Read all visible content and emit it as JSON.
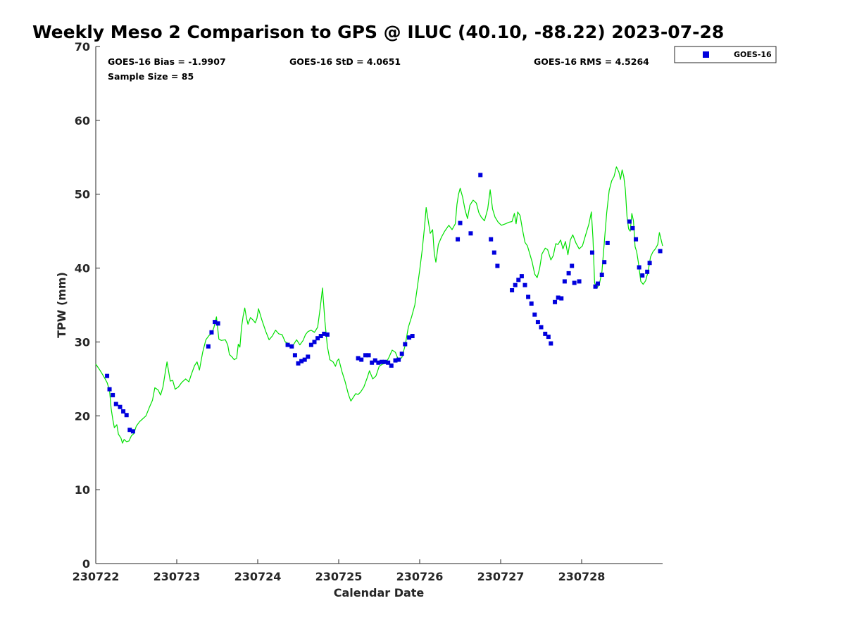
{
  "chart_data": {
    "type": "scatter",
    "title": "Weekly Meso 2 Comparison to GPS @ ILUC (40.10, -88.22) 2023-07-28",
    "xlabel": "Calendar Date",
    "ylabel": "TPW (mm)",
    "ylim": [
      0,
      70
    ],
    "yticks": [
      0,
      10,
      20,
      30,
      40,
      50,
      60,
      70
    ],
    "xlim": [
      0,
      7
    ],
    "xticks": [
      {
        "x": 0,
        "label": "230722"
      },
      {
        "x": 1,
        "label": "230723"
      },
      {
        "x": 2,
        "label": "230724"
      },
      {
        "x": 3,
        "label": "230725"
      },
      {
        "x": 4,
        "label": "230726"
      },
      {
        "x": 5,
        "label": "230727"
      },
      {
        "x": 6,
        "label": "230728"
      }
    ],
    "grid": false,
    "legend_position": "outside-top-right",
    "stats": {
      "bias": "GOES-16 Bias = -1.9907",
      "std": "GOES-16 StD = 4.0651",
      "rms": "GOES-16 RMS = 4.5264",
      "sample": "Sample Size = 85"
    },
    "legend": {
      "label": "GOES-16"
    },
    "series": [
      {
        "name": "GOES-16",
        "kind": "scatter",
        "color": "#0000dd",
        "points": [
          [
            0.14,
            25.4
          ],
          [
            0.17,
            23.6
          ],
          [
            0.21,
            22.8
          ],
          [
            0.25,
            21.6
          ],
          [
            0.3,
            21.2
          ],
          [
            0.34,
            20.6
          ],
          [
            0.38,
            20.1
          ],
          [
            0.42,
            18.1
          ],
          [
            0.46,
            17.9
          ],
          [
            1.39,
            29.4
          ],
          [
            1.43,
            31.3
          ],
          [
            1.47,
            32.7
          ],
          [
            1.51,
            32.5
          ],
          [
            2.37,
            29.6
          ],
          [
            2.42,
            29.4
          ],
          [
            2.46,
            28.2
          ],
          [
            2.5,
            27.1
          ],
          [
            2.54,
            27.4
          ],
          [
            2.58,
            27.6
          ],
          [
            2.62,
            28.0
          ],
          [
            2.66,
            29.6
          ],
          [
            2.7,
            30.0
          ],
          [
            2.74,
            30.5
          ],
          [
            2.78,
            30.8
          ],
          [
            2.82,
            31.1
          ],
          [
            2.86,
            31.0
          ],
          [
            3.24,
            27.8
          ],
          [
            3.28,
            27.6
          ],
          [
            3.33,
            28.2
          ],
          [
            3.37,
            28.2
          ],
          [
            3.41,
            27.2
          ],
          [
            3.45,
            27.5
          ],
          [
            3.49,
            27.2
          ],
          [
            3.53,
            27.3
          ],
          [
            3.57,
            27.3
          ],
          [
            3.61,
            27.2
          ],
          [
            3.65,
            26.8
          ],
          [
            3.7,
            27.5
          ],
          [
            3.74,
            27.6
          ],
          [
            3.78,
            28.4
          ],
          [
            3.82,
            29.7
          ],
          [
            3.87,
            30.6
          ],
          [
            3.91,
            30.8
          ],
          [
            4.47,
            43.9
          ],
          [
            4.5,
            46.1
          ],
          [
            4.63,
            44.7
          ],
          [
            4.75,
            52.6
          ],
          [
            4.88,
            43.9
          ],
          [
            4.92,
            42.1
          ],
          [
            4.96,
            40.3
          ],
          [
            5.14,
            37.0
          ],
          [
            5.18,
            37.7
          ],
          [
            5.22,
            38.4
          ],
          [
            5.26,
            38.9
          ],
          [
            5.3,
            37.7
          ],
          [
            5.34,
            36.1
          ],
          [
            5.38,
            35.2
          ],
          [
            5.42,
            33.7
          ],
          [
            5.46,
            32.7
          ],
          [
            5.5,
            32.0
          ],
          [
            5.55,
            31.1
          ],
          [
            5.59,
            30.7
          ],
          [
            5.62,
            29.8
          ],
          [
            5.67,
            35.4
          ],
          [
            5.71,
            36.0
          ],
          [
            5.75,
            35.9
          ],
          [
            5.79,
            38.2
          ],
          [
            5.84,
            39.3
          ],
          [
            5.88,
            40.3
          ],
          [
            5.91,
            38.0
          ],
          [
            5.97,
            38.2
          ],
          [
            6.13,
            42.1
          ],
          [
            6.17,
            37.5
          ],
          [
            6.2,
            37.9
          ],
          [
            6.25,
            39.1
          ],
          [
            6.28,
            40.8
          ],
          [
            6.32,
            43.4
          ],
          [
            6.59,
            46.3
          ],
          [
            6.63,
            45.4
          ],
          [
            6.67,
            43.9
          ],
          [
            6.71,
            40.1
          ],
          [
            6.75,
            39.0
          ],
          [
            6.81,
            39.5
          ],
          [
            6.84,
            40.7
          ],
          [
            6.97,
            42.3
          ]
        ]
      },
      {
        "name": "",
        "kind": "line",
        "color": "#00e000",
        "points": [
          [
            0.0,
            27.0
          ],
          [
            0.05,
            26.2
          ],
          [
            0.1,
            25.3
          ],
          [
            0.14,
            24.5
          ],
          [
            0.17,
            23.4
          ],
          [
            0.19,
            21.0
          ],
          [
            0.21,
            19.5
          ],
          [
            0.23,
            18.4
          ],
          [
            0.26,
            18.8
          ],
          [
            0.28,
            17.5
          ],
          [
            0.31,
            17.0
          ],
          [
            0.33,
            16.3
          ],
          [
            0.35,
            16.8
          ],
          [
            0.38,
            16.5
          ],
          [
            0.41,
            16.6
          ],
          [
            0.44,
            17.3
          ],
          [
            0.47,
            17.6
          ],
          [
            0.5,
            18.6
          ],
          [
            0.54,
            19.2
          ],
          [
            0.58,
            19.6
          ],
          [
            0.62,
            20.0
          ],
          [
            0.66,
            21.1
          ],
          [
            0.7,
            22.1
          ],
          [
            0.73,
            23.8
          ],
          [
            0.77,
            23.5
          ],
          [
            0.8,
            22.8
          ],
          [
            0.83,
            23.9
          ],
          [
            0.86,
            26.0
          ],
          [
            0.88,
            27.3
          ],
          [
            0.9,
            26.0
          ],
          [
            0.92,
            24.7
          ],
          [
            0.95,
            24.8
          ],
          [
            0.98,
            23.6
          ],
          [
            1.02,
            23.9
          ],
          [
            1.06,
            24.5
          ],
          [
            1.11,
            25.0
          ],
          [
            1.15,
            24.6
          ],
          [
            1.18,
            25.6
          ],
          [
            1.22,
            26.8
          ],
          [
            1.25,
            27.3
          ],
          [
            1.28,
            26.2
          ],
          [
            1.32,
            28.6
          ],
          [
            1.36,
            30.3
          ],
          [
            1.4,
            30.9
          ],
          [
            1.43,
            31.1
          ],
          [
            1.46,
            32.0
          ],
          [
            1.49,
            33.4
          ],
          [
            1.52,
            30.4
          ],
          [
            1.55,
            30.2
          ],
          [
            1.6,
            30.3
          ],
          [
            1.63,
            29.6
          ],
          [
            1.65,
            28.3
          ],
          [
            1.68,
            28.0
          ],
          [
            1.71,
            27.6
          ],
          [
            1.74,
            27.8
          ],
          [
            1.76,
            29.7
          ],
          [
            1.78,
            29.3
          ],
          [
            1.8,
            32.0
          ],
          [
            1.82,
            33.5
          ],
          [
            1.84,
            34.6
          ],
          [
            1.86,
            33.3
          ],
          [
            1.88,
            32.4
          ],
          [
            1.91,
            33.3
          ],
          [
            1.94,
            33.0
          ],
          [
            1.97,
            32.6
          ],
          [
            1.99,
            33.2
          ],
          [
            2.01,
            34.5
          ],
          [
            2.05,
            33.0
          ],
          [
            2.1,
            31.4
          ],
          [
            2.14,
            30.3
          ],
          [
            2.18,
            30.8
          ],
          [
            2.22,
            31.6
          ],
          [
            2.26,
            31.1
          ],
          [
            2.3,
            31.0
          ],
          [
            2.34,
            30.0
          ],
          [
            2.38,
            29.8
          ],
          [
            2.41,
            29.3
          ],
          [
            2.44,
            29.6
          ],
          [
            2.48,
            30.3
          ],
          [
            2.52,
            29.6
          ],
          [
            2.56,
            30.2
          ],
          [
            2.59,
            31.0
          ],
          [
            2.62,
            31.4
          ],
          [
            2.66,
            31.6
          ],
          [
            2.7,
            31.3
          ],
          [
            2.74,
            32.0
          ],
          [
            2.77,
            34.5
          ],
          [
            2.8,
            37.3
          ],
          [
            2.83,
            32.8
          ],
          [
            2.86,
            29.4
          ],
          [
            2.89,
            27.6
          ],
          [
            2.93,
            27.3
          ],
          [
            2.96,
            26.7
          ],
          [
            2.98,
            27.4
          ],
          [
            3.0,
            27.7
          ],
          [
            3.04,
            26.0
          ],
          [
            3.08,
            24.6
          ],
          [
            3.12,
            22.9
          ],
          [
            3.15,
            22.0
          ],
          [
            3.18,
            22.5
          ],
          [
            3.21,
            23.0
          ],
          [
            3.24,
            22.9
          ],
          [
            3.27,
            23.2
          ],
          [
            3.31,
            23.9
          ],
          [
            3.35,
            25.1
          ],
          [
            3.38,
            26.1
          ],
          [
            3.42,
            25.0
          ],
          [
            3.46,
            25.4
          ],
          [
            3.5,
            26.7
          ],
          [
            3.54,
            27.0
          ],
          [
            3.58,
            27.1
          ],
          [
            3.62,
            27.9
          ],
          [
            3.66,
            28.9
          ],
          [
            3.7,
            28.6
          ],
          [
            3.74,
            27.5
          ],
          [
            3.78,
            27.9
          ],
          [
            3.82,
            29.5
          ],
          [
            3.86,
            32.0
          ],
          [
            3.9,
            33.4
          ],
          [
            3.94,
            35.0
          ],
          [
            3.97,
            37.3
          ],
          [
            4.0,
            39.7
          ],
          [
            4.03,
            42.4
          ],
          [
            4.06,
            45.6
          ],
          [
            4.08,
            48.2
          ],
          [
            4.1,
            46.8
          ],
          [
            4.13,
            44.7
          ],
          [
            4.16,
            45.2
          ],
          [
            4.18,
            42.0
          ],
          [
            4.2,
            40.8
          ],
          [
            4.23,
            43.2
          ],
          [
            4.27,
            44.2
          ],
          [
            4.31,
            45.0
          ],
          [
            4.36,
            45.8
          ],
          [
            4.4,
            45.2
          ],
          [
            4.44,
            46.0
          ],
          [
            4.46,
            48.6
          ],
          [
            4.48,
            50.0
          ],
          [
            4.5,
            50.8
          ],
          [
            4.53,
            49.6
          ],
          [
            4.56,
            47.9
          ],
          [
            4.59,
            46.7
          ],
          [
            4.62,
            48.5
          ],
          [
            4.66,
            49.2
          ],
          [
            4.7,
            48.8
          ],
          [
            4.73,
            47.5
          ],
          [
            4.76,
            46.9
          ],
          [
            4.8,
            46.4
          ],
          [
            4.84,
            48.0
          ],
          [
            4.87,
            50.6
          ],
          [
            4.9,
            48.0
          ],
          [
            4.93,
            46.9
          ],
          [
            4.97,
            46.2
          ],
          [
            5.01,
            45.8
          ],
          [
            5.06,
            46.0
          ],
          [
            5.1,
            46.2
          ],
          [
            5.14,
            46.3
          ],
          [
            5.17,
            47.4
          ],
          [
            5.19,
            46.0
          ],
          [
            5.21,
            47.6
          ],
          [
            5.24,
            47.1
          ],
          [
            5.27,
            45.2
          ],
          [
            5.3,
            43.5
          ],
          [
            5.33,
            43.0
          ],
          [
            5.36,
            41.9
          ],
          [
            5.39,
            40.8
          ],
          [
            5.42,
            39.2
          ],
          [
            5.45,
            38.7
          ],
          [
            5.48,
            39.9
          ],
          [
            5.51,
            41.9
          ],
          [
            5.55,
            42.7
          ],
          [
            5.58,
            42.5
          ],
          [
            5.62,
            41.1
          ],
          [
            5.65,
            41.7
          ],
          [
            5.68,
            43.3
          ],
          [
            5.71,
            43.2
          ],
          [
            5.74,
            43.8
          ],
          [
            5.77,
            42.6
          ],
          [
            5.8,
            43.6
          ],
          [
            5.83,
            41.8
          ],
          [
            5.86,
            43.8
          ],
          [
            5.89,
            44.5
          ],
          [
            5.93,
            43.4
          ],
          [
            5.97,
            42.6
          ],
          [
            6.01,
            43.0
          ],
          [
            6.05,
            44.5
          ],
          [
            6.09,
            46.0
          ],
          [
            6.12,
            47.6
          ],
          [
            6.14,
            44.0
          ],
          [
            6.16,
            38.0
          ],
          [
            6.19,
            37.3
          ],
          [
            6.22,
            37.9
          ],
          [
            6.25,
            39.5
          ],
          [
            6.28,
            43.5
          ],
          [
            6.31,
            47.5
          ],
          [
            6.34,
            50.5
          ],
          [
            6.37,
            51.8
          ],
          [
            6.4,
            52.4
          ],
          [
            6.43,
            53.7
          ],
          [
            6.46,
            53.0
          ],
          [
            6.48,
            52.0
          ],
          [
            6.5,
            53.3
          ],
          [
            6.52,
            52.4
          ],
          [
            6.54,
            50.6
          ],
          [
            6.56,
            47.0
          ],
          [
            6.58,
            45.3
          ],
          [
            6.6,
            45.0
          ],
          [
            6.62,
            47.4
          ],
          [
            6.64,
            46.4
          ],
          [
            6.66,
            42.9
          ],
          [
            6.68,
            42.2
          ],
          [
            6.7,
            40.8
          ],
          [
            6.73,
            38.2
          ],
          [
            6.76,
            37.8
          ],
          [
            6.79,
            38.3
          ],
          [
            6.82,
            39.5
          ],
          [
            6.85,
            41.5
          ],
          [
            6.88,
            42.2
          ],
          [
            6.91,
            42.6
          ],
          [
            6.94,
            43.2
          ],
          [
            6.96,
            44.8
          ],
          [
            6.98,
            43.9
          ],
          [
            7.0,
            43.0
          ]
        ]
      }
    ]
  }
}
